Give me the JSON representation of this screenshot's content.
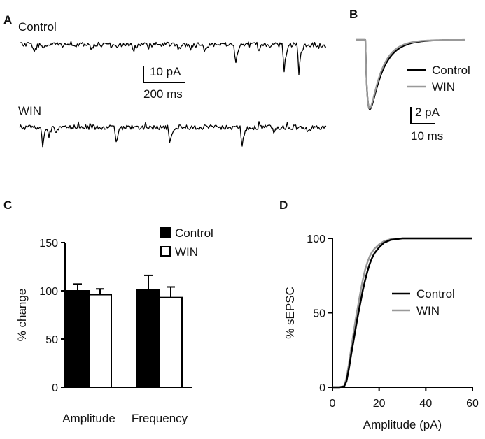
{
  "panels": {
    "a": {
      "letter": "A",
      "trace1_label": "Control",
      "trace2_label": "WIN",
      "scale_y_label": "10 pA",
      "scale_x_label": "200 ms"
    },
    "b": {
      "letter": "B",
      "legend": [
        "Control",
        "WIN"
      ],
      "scale_y_label": "2 pA",
      "scale_x_label": "10 ms"
    },
    "c": {
      "letter": "C"
    },
    "d": {
      "letter": "D"
    }
  },
  "colors": {
    "control": "#000000",
    "win": "#999999",
    "axis": "#000000"
  },
  "chart_data": [
    {
      "id": "C",
      "type": "bar",
      "categories": [
        "Amplitude",
        "Frequency"
      ],
      "series": [
        {
          "name": "Control",
          "values": [
            100,
            101
          ],
          "errors": [
            7,
            15
          ],
          "color": "#000000",
          "fill": "solid"
        },
        {
          "name": "WIN",
          "values": [
            96,
            93
          ],
          "errors": [
            6,
            11
          ],
          "color": "#000000",
          "fill": "white"
        }
      ],
      "title": "",
      "xlabel": "",
      "ylabel": "% change",
      "ylim": [
        0,
        150
      ],
      "yticks": [
        "0",
        "50",
        "100",
        "150"
      ],
      "legend_position": "top-right"
    },
    {
      "id": "D",
      "type": "line",
      "title": "",
      "xlabel": "Amplitude (pA)",
      "ylabel": "% sEPSC",
      "xlim": [
        0,
        60
      ],
      "ylim": [
        0,
        100
      ],
      "xticks": [
        "0",
        "20",
        "40",
        "60"
      ],
      "yticks": [
        "0",
        "50",
        "100"
      ],
      "legend_position": "center-right",
      "series": [
        {
          "name": "Control",
          "color": "#000000",
          "x": [
            0,
            3,
            5,
            6,
            7,
            8,
            9,
            10,
            11,
            12,
            13,
            14,
            15,
            16,
            17,
            18,
            20,
            22,
            25,
            30,
            35,
            40,
            60
          ],
          "y": [
            0,
            0,
            0.5,
            4,
            12,
            22,
            31,
            40,
            49,
            57,
            65,
            72,
            78,
            83,
            87,
            90,
            94,
            97,
            99,
            100,
            100,
            100,
            100
          ]
        },
        {
          "name": "WIN",
          "color": "#999999",
          "x": [
            0,
            3,
            5,
            6,
            7,
            8,
            9,
            10,
            11,
            12,
            13,
            14,
            15,
            16,
            17,
            18,
            20,
            22,
            25,
            30,
            35,
            40,
            60
          ],
          "y": [
            0,
            0,
            0.8,
            6,
            15,
            26,
            36,
            46,
            55,
            64,
            72,
            79,
            84,
            88,
            91,
            93,
            96,
            98,
            99.5,
            100,
            100,
            100,
            100
          ]
        }
      ]
    }
  ]
}
